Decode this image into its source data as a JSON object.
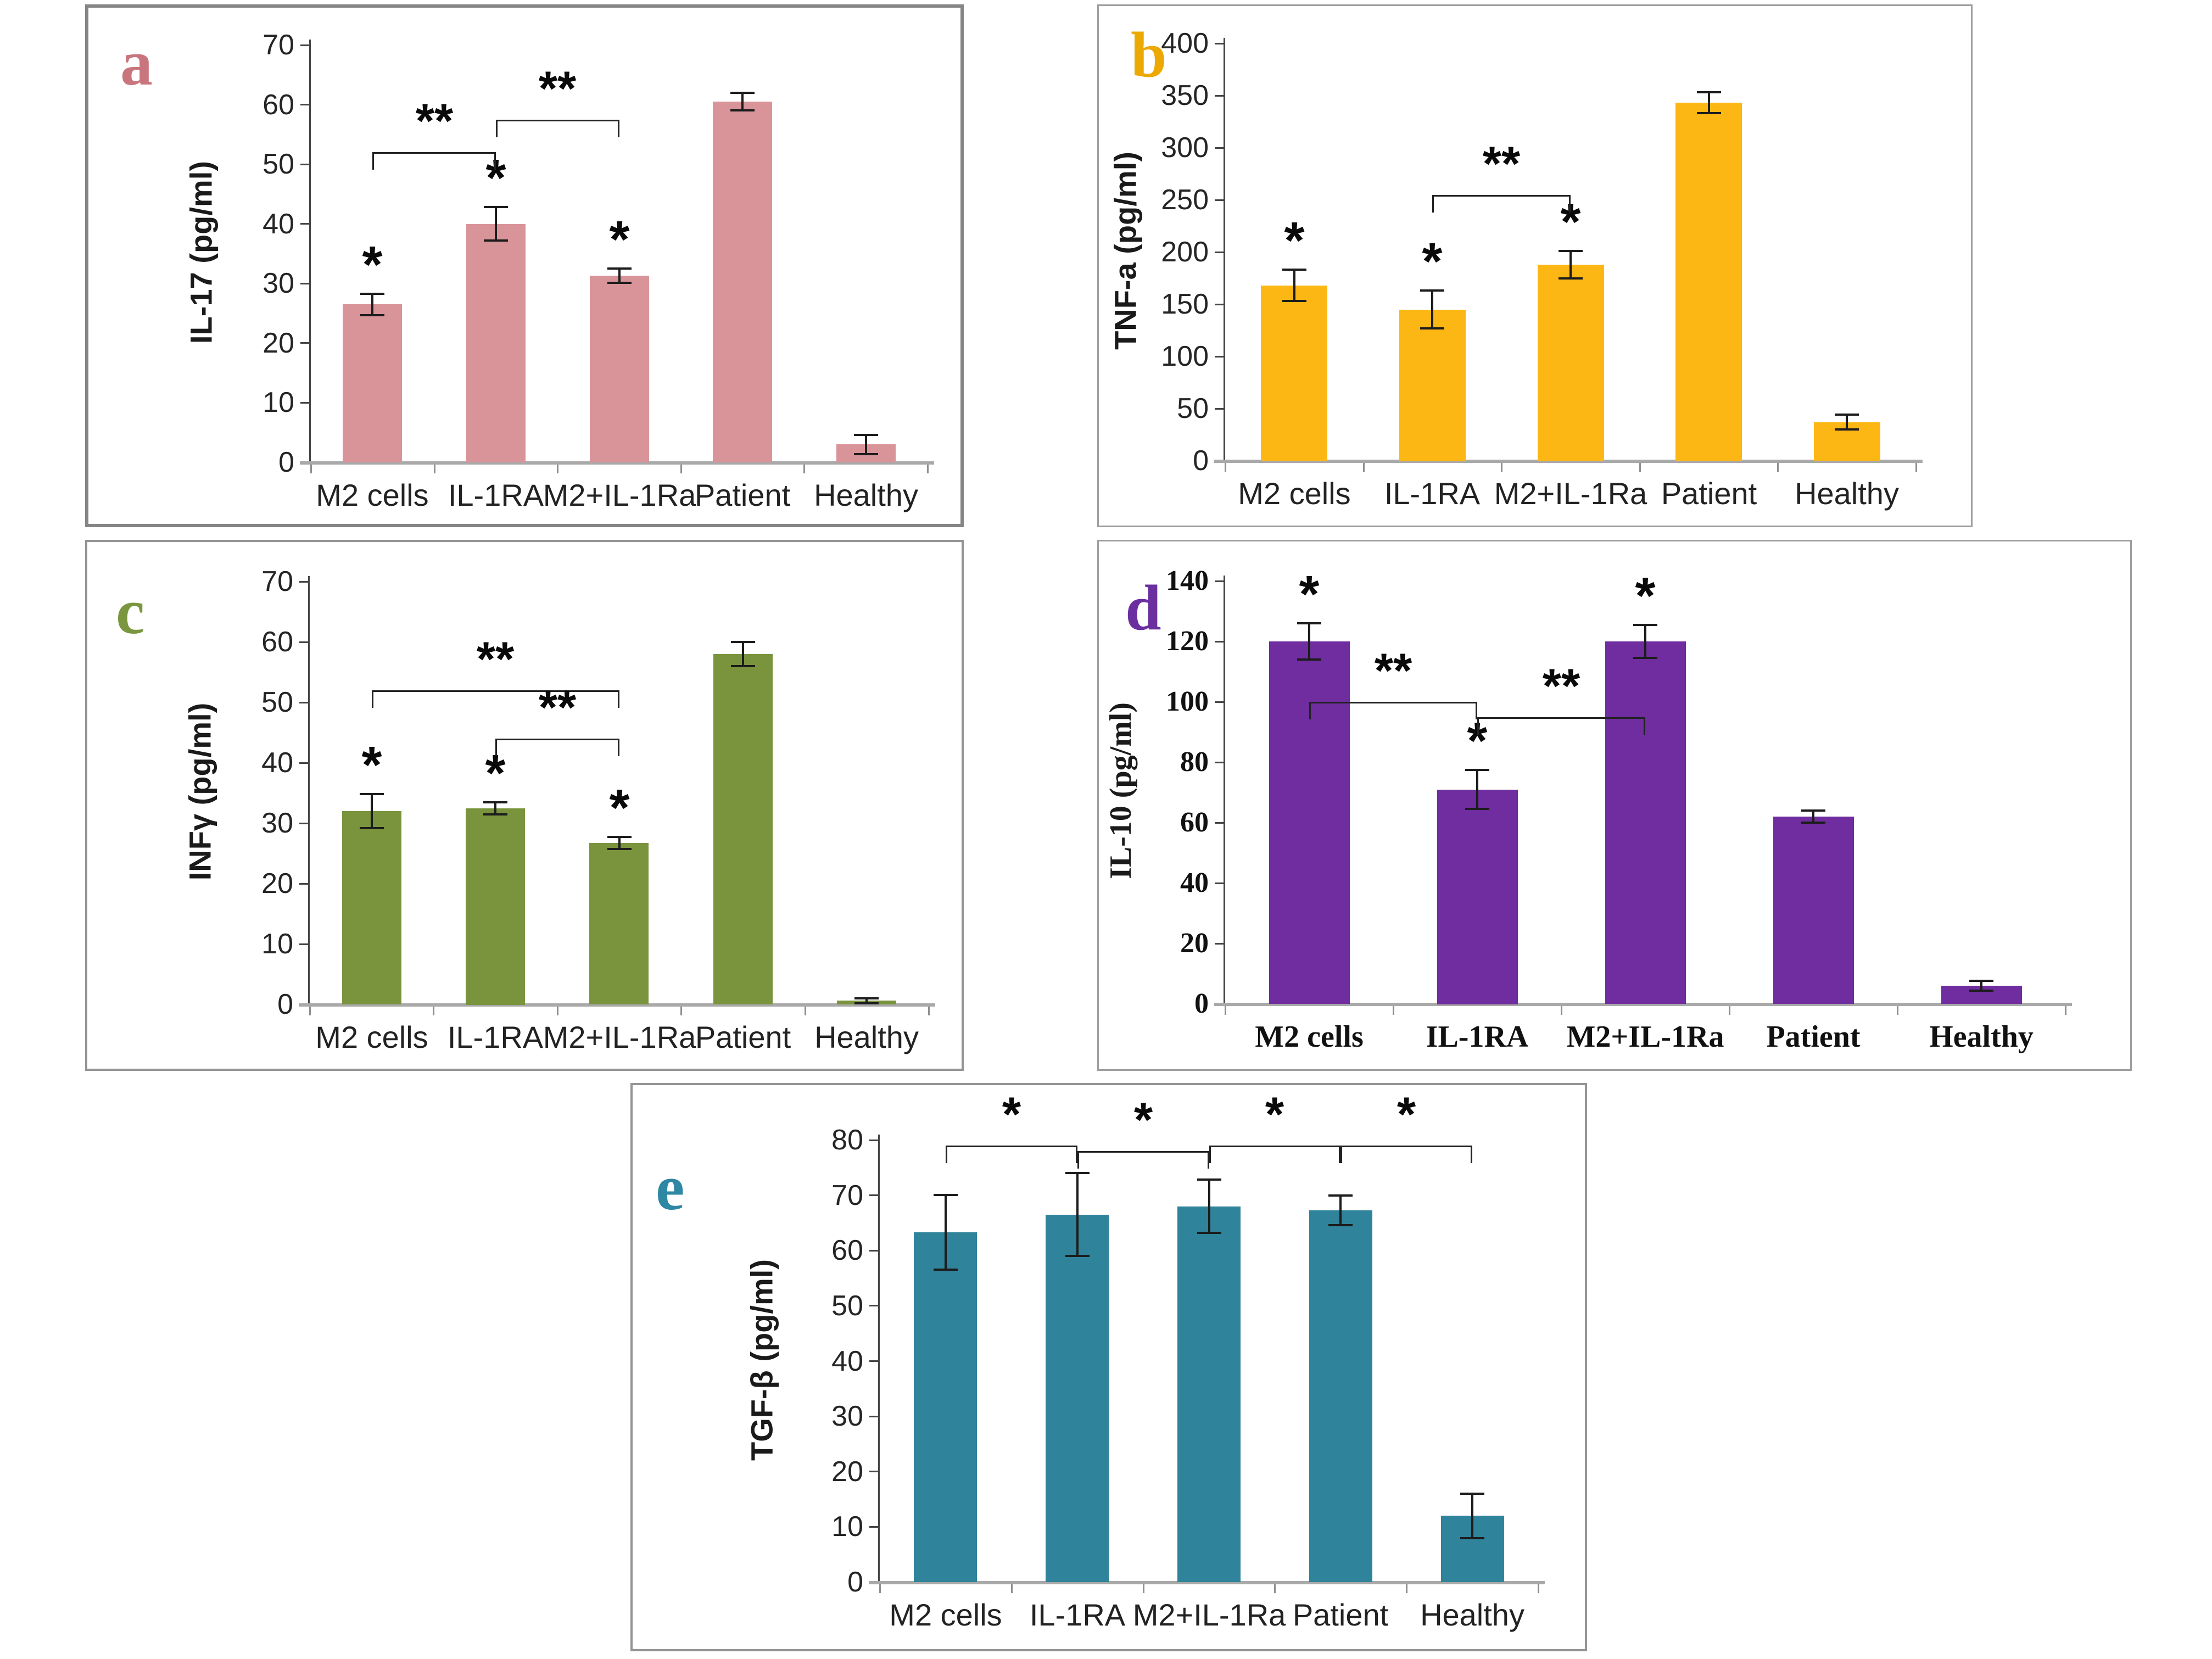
{
  "figure": {
    "description": "Five-panel bar chart figure (a-e) of cytokine concentrations for five groups",
    "groups": [
      "M2 cells",
      "IL-1RA",
      "M2+IL-1Ra",
      "Patient",
      "Healthy"
    ]
  },
  "chart_data": [
    {
      "type": "bar",
      "panel_letter": "a",
      "letter_color": "#c9757d",
      "bar_color": "#d99499",
      "ylabel": "IL-17 (pg/ml)",
      "xlabel": "",
      "ylim": [
        0,
        70
      ],
      "ystep": 10,
      "grid": false,
      "legend": "none",
      "categories": [
        "M2 cells",
        "IL-1RA",
        "M2+IL-1Ra",
        "Patient",
        "Healthy"
      ],
      "values": [
        26.5,
        40,
        31.3,
        60.5,
        3
      ],
      "errors": [
        1.8,
        2.8,
        1.2,
        1.5,
        1.6
      ],
      "bar_stars": [
        0,
        1,
        2
      ],
      "star_symbol": "*",
      "brackets": [
        {
          "from": 0,
          "to": 1,
          "level": 52,
          "label": "**"
        },
        {
          "from": 1,
          "to": 2,
          "level": 57.5,
          "label": "**"
        }
      ]
    },
    {
      "type": "bar",
      "panel_letter": "b",
      "letter_color": "#eda903",
      "bar_color": "#fdb714",
      "ylabel": "TNF-a (pg/ml)",
      "xlabel": "",
      "ylim": [
        0,
        400
      ],
      "ystep": 50,
      "grid": false,
      "legend": "none",
      "categories": [
        "M2 cells",
        "IL-1RA",
        "M2+IL-1Ra",
        "Patient",
        "Healthy"
      ],
      "values": [
        168,
        145,
        188,
        343,
        37
      ],
      "errors": [
        15,
        18,
        13,
        10,
        7
      ],
      "bar_stars": [
        0,
        1,
        2
      ],
      "star_symbol": "*",
      "brackets": [
        {
          "from": 1,
          "to": 2,
          "level": 255,
          "label": "**"
        }
      ]
    },
    {
      "type": "bar",
      "panel_letter": "c",
      "letter_color": "#7a963f",
      "bar_color": "#7a943d",
      "ylabel": "INFγ (pg/ml)",
      "xlabel": "",
      "ylim": [
        0,
        70
      ],
      "ystep": 10,
      "grid": false,
      "legend": "none",
      "categories": [
        "M2 cells",
        "IL-1RA",
        "M2+IL-1Ra",
        "Patient",
        "Healthy"
      ],
      "values": [
        32,
        32.5,
        26.7,
        58,
        0.6
      ],
      "errors": [
        2.8,
        1,
        1,
        2,
        0.4
      ],
      "bar_stars": [
        0,
        1,
        2
      ],
      "star_symbol": "*",
      "brackets": [
        {
          "from": 0,
          "to": 2,
          "level": 52,
          "label": "**"
        },
        {
          "from": 1,
          "to": 2,
          "level": 44,
          "label": "**"
        }
      ]
    },
    {
      "type": "bar",
      "panel_letter": "d",
      "letter_color": "#6b2fa0",
      "bar_color": "#6f2da0",
      "ylabel": "IL-10 (pg/ml)",
      "xlabel": "",
      "ylim": [
        0,
        140
      ],
      "ystep": 20,
      "grid": false,
      "legend": "none",
      "categories": [
        "M2 cells",
        "IL-1RA",
        "M2+IL-1Ra",
        "Patient",
        "Healthy"
      ],
      "values": [
        120,
        71,
        120,
        62,
        6
      ],
      "errors": [
        6,
        6.5,
        5.5,
        2,
        1.7
      ],
      "bar_stars": [
        0,
        1,
        2
      ],
      "star_symbol": "*",
      "brackets": [
        {
          "from": 0,
          "to": 1,
          "level": 100,
          "label": "**"
        },
        {
          "from": 1,
          "to": 2,
          "level": 95,
          "label": "**"
        }
      ]
    },
    {
      "type": "bar",
      "panel_letter": "e",
      "letter_color": "#2e87a3",
      "bar_color": "#2f839b",
      "ylabel": "TGF-β (pg/ml)",
      "xlabel": "",
      "ylim": [
        0,
        80
      ],
      "ystep": 10,
      "grid": false,
      "legend": "none",
      "categories": [
        "M2 cells",
        "IL-1RA",
        "M2+IL-1Ra",
        "Patient",
        "Healthy"
      ],
      "values": [
        63.3,
        66.5,
        68,
        67.3,
        12
      ],
      "errors": [
        6.8,
        7.5,
        4.8,
        2.7,
        4
      ],
      "bar_stars": [],
      "star_symbol": "*",
      "brackets": [
        {
          "from": 0,
          "to": 1,
          "level": 79,
          "label": "*"
        },
        {
          "from": 1,
          "to": 2,
          "level": 78,
          "label": "*"
        },
        {
          "from": 2,
          "to": 3,
          "level": 79,
          "label": "*"
        },
        {
          "from": 3,
          "to": 4,
          "level": 79,
          "label": "*"
        }
      ]
    }
  ]
}
